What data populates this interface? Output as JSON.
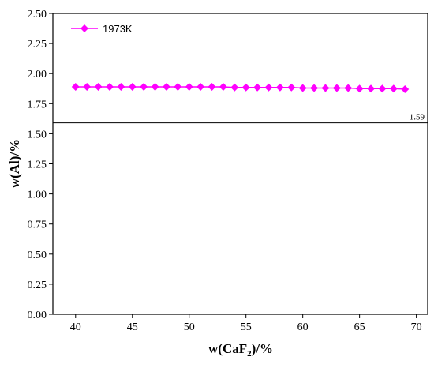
{
  "chart_data": {
    "type": "line",
    "title": "",
    "xlabel": "w(CaF",
    "xlabel_sub": "2",
    "xlabel_suffix": ")/%",
    "ylabel": "w(Al)/%",
    "xlim": [
      38,
      71
    ],
    "ylim": [
      0,
      2.5
    ],
    "x_ticks": [
      40,
      45,
      50,
      55,
      60,
      65,
      70
    ],
    "y_ticks": [
      0,
      0.25,
      0.5,
      0.75,
      1.0,
      1.25,
      1.5,
      1.75,
      2.0,
      2.25,
      2.5
    ],
    "y_tick_labels": [
      "0.00",
      "0.25",
      "0.50",
      "0.75",
      "1.00",
      "1.25",
      "1.50",
      "1.75",
      "2.00",
      "2.25",
      "2.50"
    ],
    "grid": false,
    "legend_position": "top-left",
    "series": [
      {
        "name": "1973K",
        "color": "#ff00ff",
        "marker": "diamond",
        "x": [
          40,
          41,
          42,
          43,
          44,
          45,
          46,
          47,
          48,
          49,
          50,
          51,
          52,
          53,
          54,
          55,
          56,
          57,
          58,
          59,
          60,
          61,
          62,
          63,
          64,
          65,
          66,
          67,
          68,
          69
        ],
        "y": [
          1.89,
          1.89,
          1.89,
          1.89,
          1.89,
          1.89,
          1.89,
          1.89,
          1.89,
          1.89,
          1.89,
          1.89,
          1.89,
          1.89,
          1.885,
          1.885,
          1.885,
          1.885,
          1.885,
          1.885,
          1.88,
          1.88,
          1.88,
          1.88,
          1.88,
          1.875,
          1.875,
          1.875,
          1.875,
          1.87
        ]
      }
    ],
    "reference_line": {
      "y": 1.59,
      "label": "1.59",
      "color": "#000000"
    }
  }
}
